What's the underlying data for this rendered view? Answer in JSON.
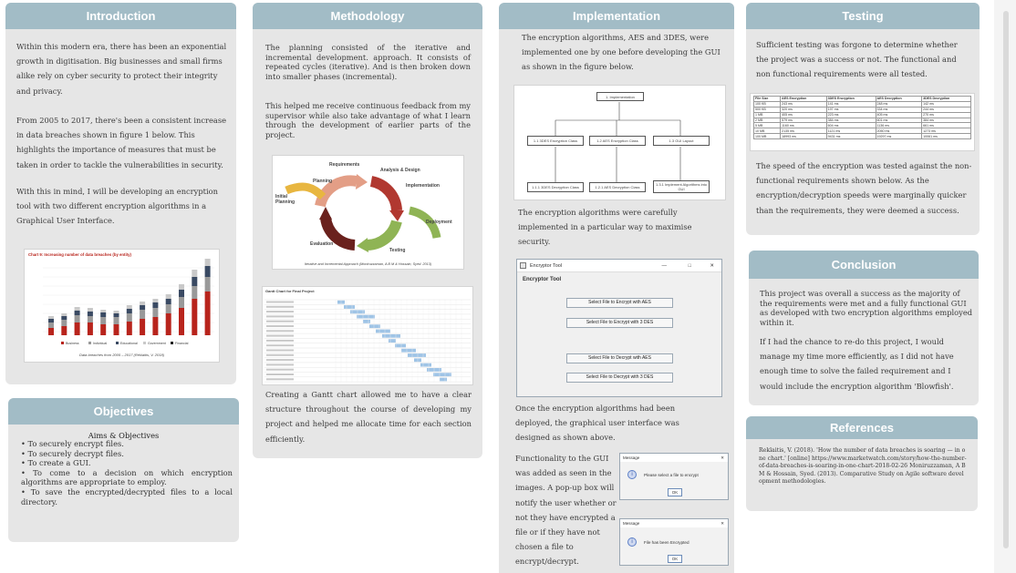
{
  "introduction": {
    "title": "Introduction",
    "para1": "Within this modern era, there has been an exponential growth in digitisation. Big businesses and small firms alike rely on cyber security to protect their integrity and privacy.",
    "para2": "From 2005 to 2017, there's been a consistent increase in data breaches shown in figure 1 below. This highlights the importance of measures that must be taken in order to tackle the vulnerabilities in security.",
    "para3": "With this in mind, I will be developing an encryption tool with two different encryption algorithms in a Graphical User Interface.",
    "chart_title": "Chart 9: Increasing number of data breaches (by entity)",
    "chart_caption": "Data breaches from 2005 – 2017 (Reklaitis, V. 2018)",
    "chart_legend": [
      "Business",
      "Individual",
      "Educational",
      "Government",
      "Financial"
    ],
    "chart_colors": [
      "#b8241c",
      "#999999",
      "#3a4a63",
      "#c9c9c9",
      "#222222"
    ]
  },
  "objectives": {
    "title": "Objectives",
    "subtitle": "Aims & Objectives",
    "items": [
      "To securely encrypt files.",
      "To securely decrypt files.",
      "To create a GUI.",
      "To come to a decision on which encryption algorithms are appropriate to employ.",
      "To save the encrypted/decrypted files to a local directory."
    ]
  },
  "methodology": {
    "title": "Methodology",
    "para1": "The planning consisted of the iterative and incremental development. approach. It consists of repeated cycles (iterative). And is then broken down into smaller phases (incremental).",
    "para2": "This helped me receive continuous feedback from my supervisor while also take advantage of what I learn through the development of earlier parts of the project.",
    "cycle_labels": {
      "requirements": "Requirements",
      "analysis": "Analysis & Design",
      "planning": "Planning",
      "initial": "Initial Planning",
      "implementation": "Implementation",
      "deployment": "Deployment",
      "evaluation": "Evaluation",
      "testing": "Testing"
    },
    "cycle_caption": "Iterative and Incremental Approach (Moniruzzaman, A B M & Hossain, Syed. 2013)",
    "gantt_title": "Gantt Chart for Final Project",
    "para3": "Creating a Gantt chart allowed me to have a clear structure throughout the course of developing my project and helped me allocate time for each section efficiently."
  },
  "implementation": {
    "title": "Implementation",
    "para1": "The encryption algorithms, AES and 3DES, were implemented one by one before developing the GUI as shown in the figure below.",
    "diagram": {
      "root": "1. Implementation",
      "level2": [
        "1.1 3DES Encryption Class",
        "1.2 AES Encryption Class",
        "1.3 GUI Layout"
      ],
      "level3": [
        "1.1.1 3DES Decryption Class",
        "1.2.1 AES Decryption Class",
        "1.3.1 Implement Algorithms into GUI"
      ]
    },
    "para2": "The encryption algorithms were carefully implemented in a particular way to maximise security.",
    "gui": {
      "window_title": "Encryptor Tool",
      "heading": "Encryptor Tool",
      "buttons": [
        "Select File to Encrypt with AES",
        "Select File to Encrypt with 3 DES",
        "Select File to Decrypt with AES",
        "Select File to Decrypt with 3 DES"
      ]
    },
    "para3": "Once the encryption algorithms had been deployed, the graphical user interface was designed as shown above.",
    "para4": "Functionality to the GUI was added as seen in the images. A pop-up box will notify the user whether or not they have encrypted a file or if they have not chosen a file to encrypt/decrypt.",
    "dialog1": {
      "title": "Message",
      "text": "Please select a file to encrypt",
      "ok": "OK"
    },
    "dialog2": {
      "title": "Message",
      "text": "File has been Encrypted",
      "ok": "OK"
    }
  },
  "testing": {
    "title": "Testing",
    "para1": "Sufficient testing was forgone to determine whether the project was a success or not. The functional and non functional requirements were all tested.",
    "table": {
      "headers": [
        "File Size",
        "AES Encryption",
        "3DES Encryption",
        "AES Decryption",
        "3DES Decryption"
      ],
      "rows": [
        [
          "100 KB",
          "243 ms",
          "141 ms",
          "248 ms",
          "142 ms"
        ],
        [
          "500 KB",
          "320 ms",
          "197 ms",
          "334 ms",
          "244 ms"
        ],
        [
          "1 MB",
          "405 ms",
          "223 ms",
          "405 ms",
          "270 ms"
        ],
        [
          "2 MB",
          "579 ms",
          "384 ms",
          "601 ms",
          "384 ms"
        ],
        [
          "5 MB",
          "1160 ms",
          "604 ms",
          "1136 ms",
          "661 ms"
        ],
        [
          "10 MB",
          "2135 ms",
          "1121 ms",
          "2050 ms",
          "1273 ms"
        ],
        [
          "100 MB",
          "18993 ms",
          "9431 ms",
          "19297 ms",
          "10061 ms"
        ]
      ]
    },
    "para2": "The speed of the encryption was tested against the non-functional requirements shown below. As the encryption/decryption speeds were marginally quicker than the requirements, they were deemed a success."
  },
  "conclusion": {
    "title": "Conclusion",
    "para1": "This project was overall a success as the majority of the requirements were met and a fully functional GUI as developed with two encryption algorithms employed within it.",
    "para2": "If I had the chance to re-do this project, I would manage my time more efficiently, as I did not have enough time to solve the failed requirement and I would include the encryption algorithm 'Blowfish'."
  },
  "references": {
    "title": "References",
    "text": "Reklaitis, V. (2018). 'How the number of data breaches is soaring — in one chart.' [online] https://www.marketwatch.com/story/how-the-number-of-data-breaches-is-soaring-in-one-chart-2018-02-26 Moniruzzaman, A B M & Hossain, Syed. (2013). Comparative Study on Agile software development methodologies."
  }
}
